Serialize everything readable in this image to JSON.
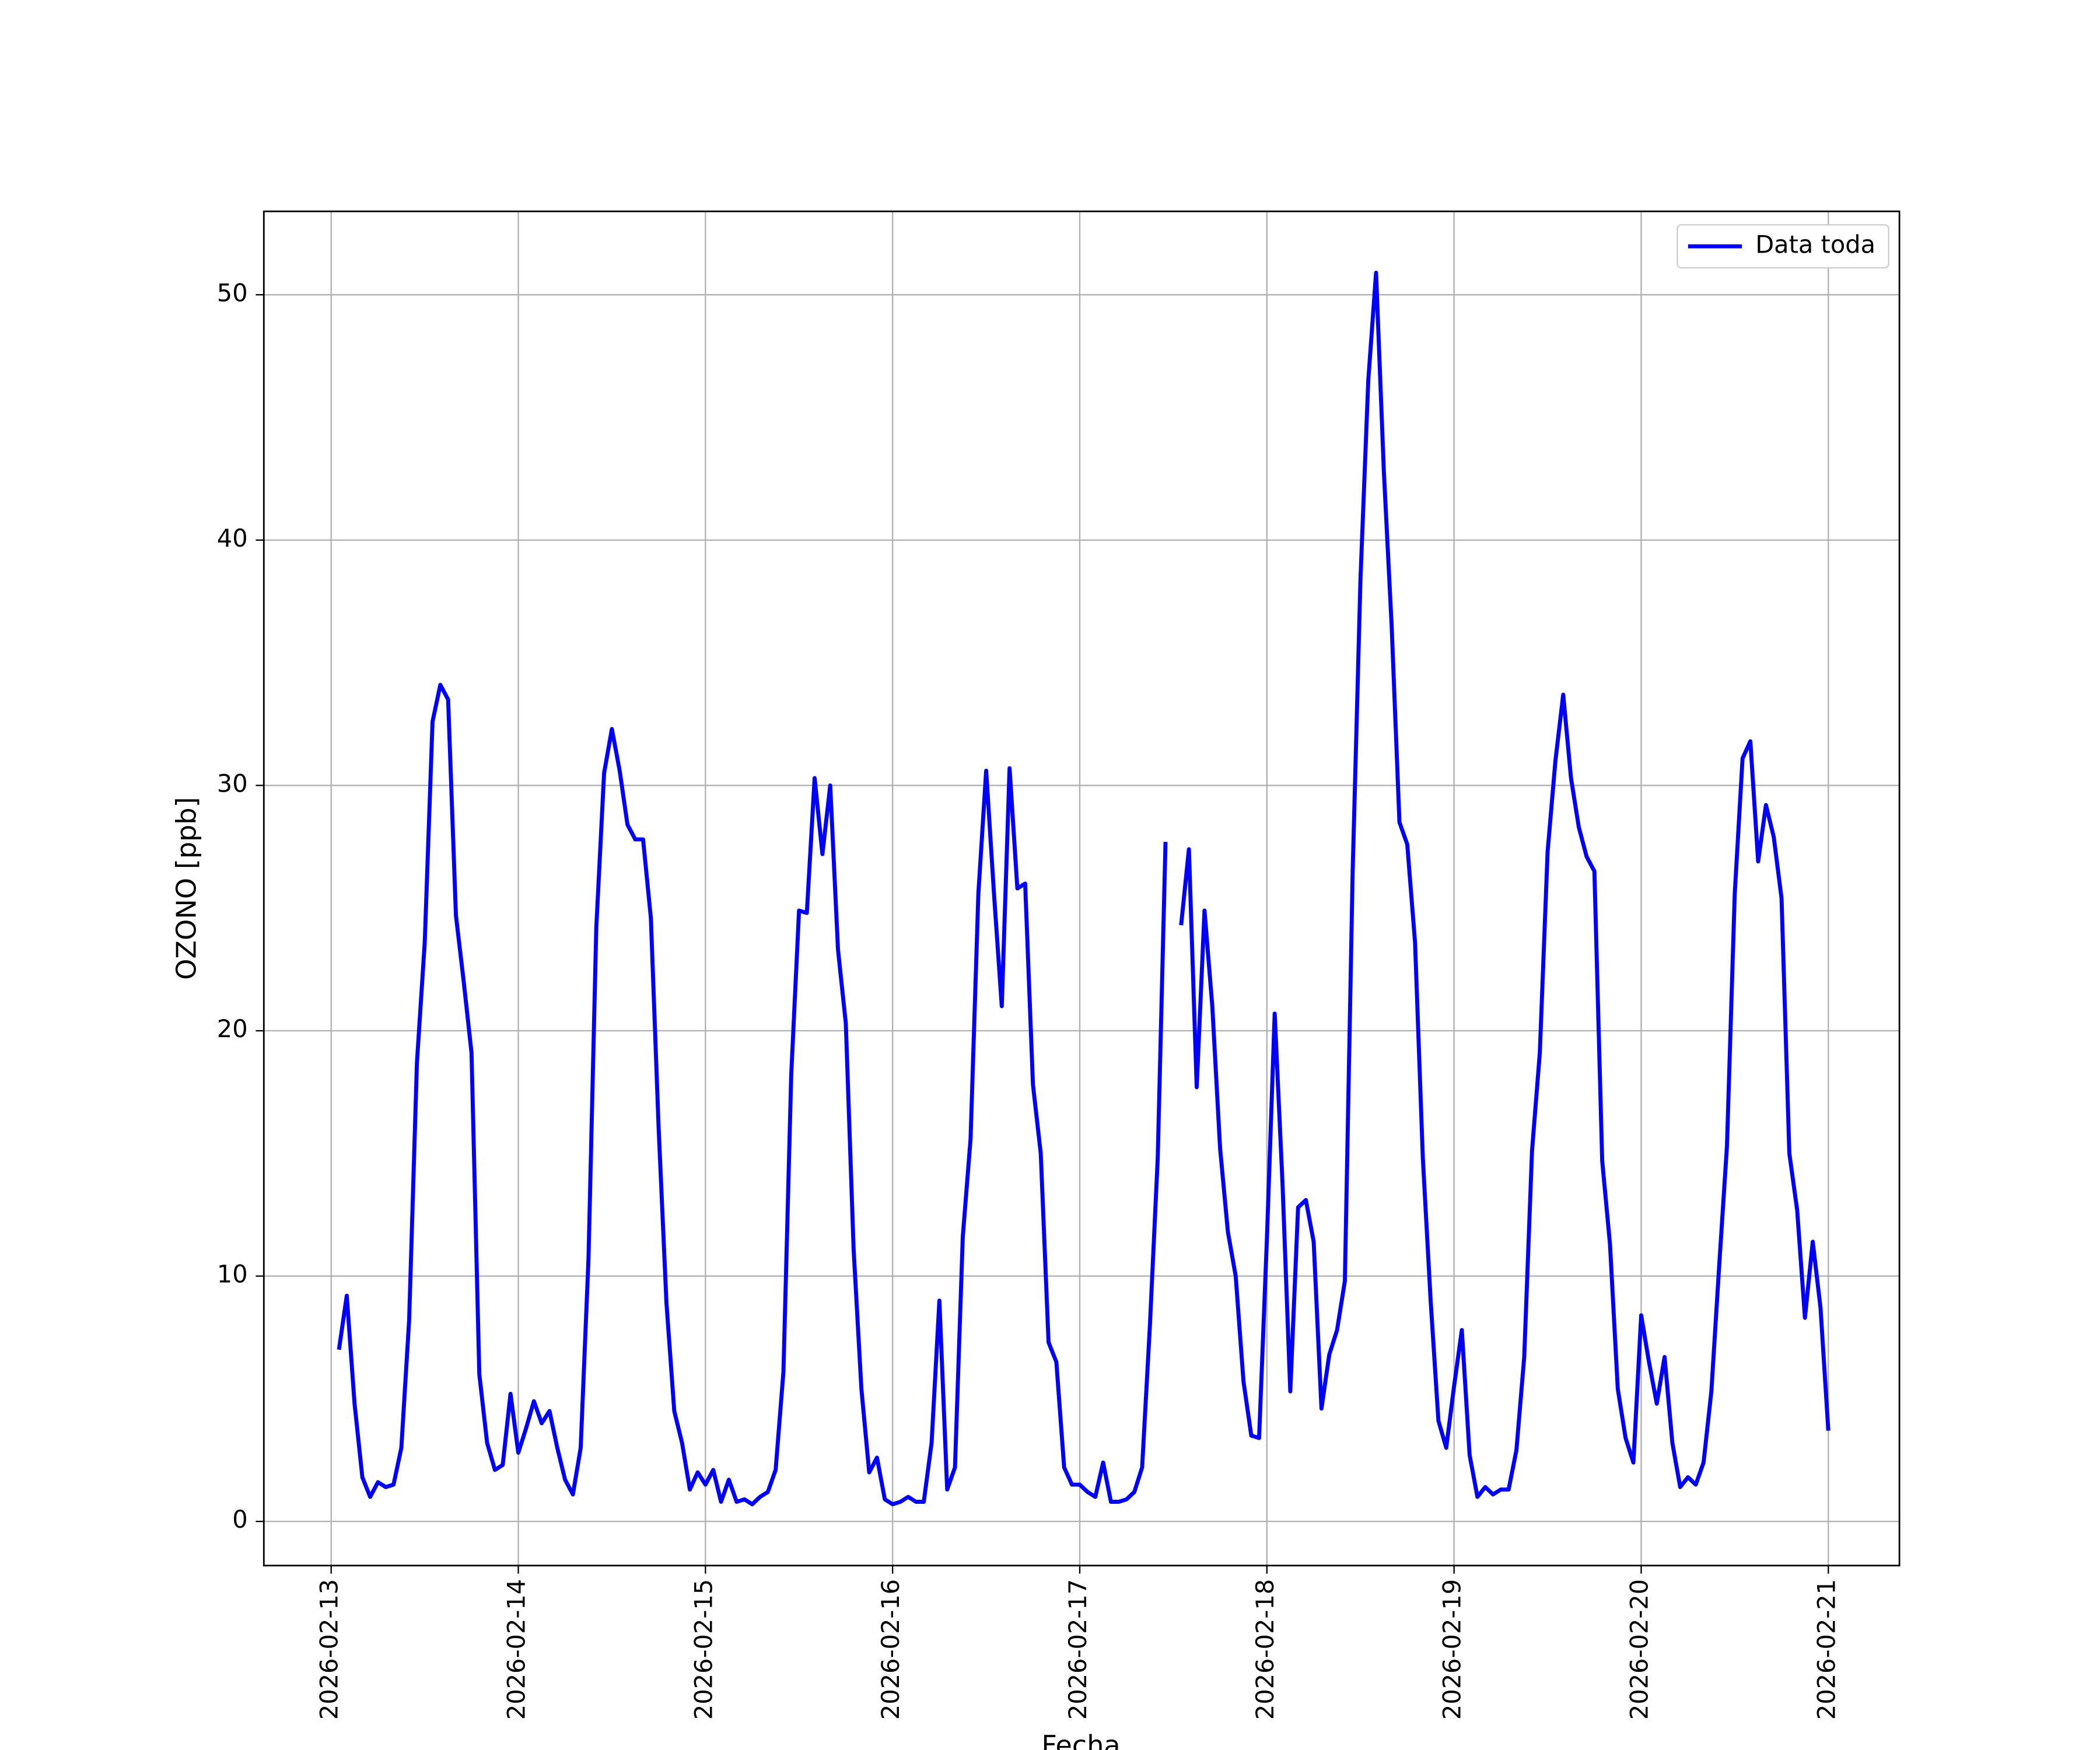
{
  "chart_data": {
    "type": "line",
    "xlabel": "Fecha",
    "ylabel": "OZONO [ppb]",
    "x": [
      "2026-02-13 01:00",
      "2026-02-13 02:00",
      "2026-02-13 03:00",
      "2026-02-13 04:00",
      "2026-02-13 05:00",
      "2026-02-13 06:00",
      "2026-02-13 07:00",
      "2026-02-13 08:00",
      "2026-02-13 09:00",
      "2026-02-13 10:00",
      "2026-02-13 11:00",
      "2026-02-13 12:00",
      "2026-02-13 13:00",
      "2026-02-13 14:00",
      "2026-02-13 15:00",
      "2026-02-13 16:00",
      "2026-02-13 17:00",
      "2026-02-13 18:00",
      "2026-02-13 19:00",
      "2026-02-13 20:00",
      "2026-02-13 21:00",
      "2026-02-13 22:00",
      "2026-02-13 23:00",
      "2026-02-14 00:00",
      "2026-02-14 01:00",
      "2026-02-14 02:00",
      "2026-02-14 03:00",
      "2026-02-14 04:00",
      "2026-02-14 05:00",
      "2026-02-14 06:00",
      "2026-02-14 07:00",
      "2026-02-14 08:00",
      "2026-02-14 09:00",
      "2026-02-14 10:00",
      "2026-02-14 11:00",
      "2026-02-14 12:00",
      "2026-02-14 13:00",
      "2026-02-14 14:00",
      "2026-02-14 15:00",
      "2026-02-14 16:00",
      "2026-02-14 17:00",
      "2026-02-14 18:00",
      "2026-02-14 19:00",
      "2026-02-14 20:00",
      "2026-02-14 21:00",
      "2026-02-14 22:00",
      "2026-02-14 23:00",
      "2026-02-15 00:00",
      "2026-02-15 01:00",
      "2026-02-15 02:00",
      "2026-02-15 03:00",
      "2026-02-15 04:00",
      "2026-02-15 05:00",
      "2026-02-15 06:00",
      "2026-02-15 07:00",
      "2026-02-15 08:00",
      "2026-02-15 09:00",
      "2026-02-15 10:00",
      "2026-02-15 11:00",
      "2026-02-15 12:00",
      "2026-02-15 13:00",
      "2026-02-15 14:00",
      "2026-02-15 15:00",
      "2026-02-15 16:00",
      "2026-02-15 17:00",
      "2026-02-15 18:00",
      "2026-02-15 19:00",
      "2026-02-15 20:00",
      "2026-02-15 21:00",
      "2026-02-15 22:00",
      "2026-02-15 23:00",
      "2026-02-16 00:00",
      "2026-02-16 01:00",
      "2026-02-16 02:00",
      "2026-02-16 03:00",
      "2026-02-16 04:00",
      "2026-02-16 05:00",
      "2026-02-16 06:00",
      "2026-02-16 07:00",
      "2026-02-16 08:00",
      "2026-02-16 09:00",
      "2026-02-16 10:00",
      "2026-02-16 11:00",
      "2026-02-16 12:00",
      "2026-02-16 13:00",
      "2026-02-16 14:00",
      "2026-02-16 15:00",
      "2026-02-16 16:00",
      "2026-02-16 17:00",
      "2026-02-16 18:00",
      "2026-02-16 19:00",
      "2026-02-16 20:00",
      "2026-02-16 21:00",
      "2026-02-16 22:00",
      "2026-02-16 23:00",
      "2026-02-17 00:00",
      "2026-02-17 01:00",
      "2026-02-17 02:00",
      "2026-02-17 03:00",
      "2026-02-17 04:00",
      "2026-02-17 05:00",
      "2026-02-17 06:00",
      "2026-02-17 07:00",
      "2026-02-17 08:00",
      "2026-02-17 09:00",
      "2026-02-17 10:00",
      "2026-02-17 11:00",
      "2026-02-17 12:00",
      "2026-02-17 13:00",
      "2026-02-17 14:00",
      "2026-02-17 15:00",
      "2026-02-17 16:00",
      "2026-02-17 17:00",
      "2026-02-17 18:00",
      "2026-02-17 19:00",
      "2026-02-17 20:00",
      "2026-02-17 21:00",
      "2026-02-17 22:00",
      "2026-02-17 23:00",
      "2026-02-18 00:00",
      "2026-02-18 01:00",
      "2026-02-18 02:00",
      "2026-02-18 03:00",
      "2026-02-18 04:00",
      "2026-02-18 05:00",
      "2026-02-18 06:00",
      "2026-02-18 07:00",
      "2026-02-18 08:00",
      "2026-02-18 09:00",
      "2026-02-18 10:00",
      "2026-02-18 11:00",
      "2026-02-18 12:00",
      "2026-02-18 13:00",
      "2026-02-18 14:00",
      "2026-02-18 15:00",
      "2026-02-18 16:00",
      "2026-02-18 17:00",
      "2026-02-18 18:00",
      "2026-02-18 19:00",
      "2026-02-18 20:00",
      "2026-02-18 21:00",
      "2026-02-18 22:00",
      "2026-02-18 23:00",
      "2026-02-19 00:00",
      "2026-02-19 01:00",
      "2026-02-19 02:00",
      "2026-02-19 03:00",
      "2026-02-19 04:00",
      "2026-02-19 05:00",
      "2026-02-19 06:00",
      "2026-02-19 07:00",
      "2026-02-19 08:00",
      "2026-02-19 09:00",
      "2026-02-19 10:00",
      "2026-02-19 11:00",
      "2026-02-19 12:00",
      "2026-02-19 13:00",
      "2026-02-19 14:00",
      "2026-02-19 15:00",
      "2026-02-19 16:00",
      "2026-02-19 17:00",
      "2026-02-19 18:00",
      "2026-02-19 19:00",
      "2026-02-19 20:00",
      "2026-02-19 21:00",
      "2026-02-19 22:00",
      "2026-02-19 23:00",
      "2026-02-20 00:00",
      "2026-02-20 01:00",
      "2026-02-20 02:00",
      "2026-02-20 03:00",
      "2026-02-20 04:00",
      "2026-02-20 05:00",
      "2026-02-20 06:00",
      "2026-02-20 07:00",
      "2026-02-20 08:00",
      "2026-02-20 09:00",
      "2026-02-20 10:00",
      "2026-02-20 11:00",
      "2026-02-20 12:00",
      "2026-02-20 13:00",
      "2026-02-20 14:00",
      "2026-02-20 15:00",
      "2026-02-20 16:00",
      "2026-02-20 17:00",
      "2026-02-20 18:00",
      "2026-02-20 19:00",
      "2026-02-20 20:00",
      "2026-02-20 21:00",
      "2026-02-20 22:00",
      "2026-02-20 23:00",
      "2026-02-21 00:00"
    ],
    "series": [
      {
        "name": "Data toda",
        "color": "#0000ff",
        "values": [
          7.0,
          9.2,
          4.8,
          1.8,
          1.0,
          1.6,
          1.4,
          1.5,
          3.0,
          8.2,
          18.7,
          23.6,
          32.6,
          34.1,
          33.5,
          24.7,
          22.0,
          19.1,
          6.0,
          3.2,
          2.1,
          2.3,
          5.2,
          2.8,
          3.8,
          4.9,
          4.0,
          4.5,
          3.0,
          1.7,
          1.1,
          3.0,
          10.7,
          24.2,
          30.5,
          32.3,
          30.6,
          28.4,
          27.8,
          27.8,
          24.6,
          16.0,
          8.9,
          4.5,
          3.2,
          1.3,
          2.0,
          1.5,
          2.1,
          0.8,
          1.7,
          0.8,
          0.9,
          0.7,
          1.0,
          1.2,
          2.1,
          6.1,
          18.2,
          24.9,
          24.8,
          30.3,
          27.2,
          30.0,
          23.3,
          20.3,
          11.1,
          5.4,
          2.0,
          2.6,
          0.9,
          0.7,
          0.8,
          1.0,
          0.8,
          0.8,
          3.2,
          9.0,
          1.3,
          2.2,
          11.6,
          15.6,
          25.6,
          30.6,
          25.6,
          21.0,
          30.7,
          25.8,
          26.0,
          17.8,
          15.0,
          7.3,
          6.5,
          2.2,
          1.5,
          1.5,
          1.2,
          1.0,
          2.4,
          0.8,
          0.8,
          0.9,
          1.2,
          2.2,
          8.0,
          14.8,
          27.7,
          null,
          24.3,
          27.4,
          17.7,
          24.9,
          21.0,
          15.2,
          11.8,
          10.0,
          5.7,
          3.5,
          3.4,
          11.5,
          20.7,
          13.8,
          5.3,
          12.8,
          13.1,
          11.4,
          4.6,
          6.8,
          7.8,
          9.8,
          26.5,
          38.4,
          46.5,
          50.9,
          42.8,
          36.5,
          28.5,
          27.6,
          23.6,
          14.8,
          9.0,
          4.1,
          3.0,
          5.5,
          7.8,
          2.7,
          1.0,
          1.4,
          1.1,
          1.3,
          1.3,
          2.9,
          6.7,
          15.1,
          19.1,
          27.3,
          31.0,
          33.7,
          30.3,
          28.3,
          27.1,
          26.5,
          14.7,
          11.3,
          5.4,
          3.4,
          2.4,
          8.4,
          6.5,
          4.8,
          6.7,
          3.2,
          1.4,
          1.8,
          1.5,
          2.4,
          5.3,
          10.4,
          15.3,
          25.6,
          31.1,
          31.8,
          26.9,
          29.2,
          27.9,
          25.4,
          15.0,
          12.7,
          8.3,
          11.4,
          8.7,
          3.7
        ]
      }
    ],
    "xlim": [
      "2026-02-12 15:22",
      "2026-02-21 09:07"
    ],
    "xticks": [
      "2026-02-13",
      "2026-02-14",
      "2026-02-15",
      "2026-02-16",
      "2026-02-17",
      "2026-02-18",
      "2026-02-19",
      "2026-02-20",
      "2026-02-21"
    ],
    "ylim": [
      -1.8,
      53.4
    ],
    "yticks": [
      0,
      10,
      20,
      30,
      40,
      50
    ],
    "grid": true,
    "legend": "upper right"
  }
}
